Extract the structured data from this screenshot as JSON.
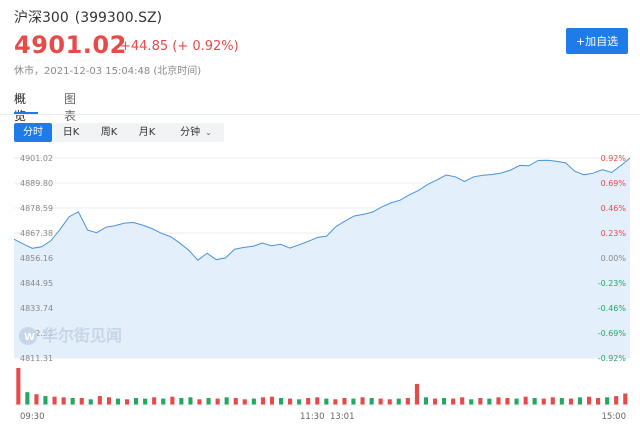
{
  "header": {
    "name": "沪深300",
    "code": "(399300.SZ)",
    "price": "4901.02",
    "change": "+44.85 (+ 0.92%)",
    "status": "休市，2021-12-03 15:04:48 (北京时间)",
    "add_button": "+加自选"
  },
  "tabs": [
    {
      "label": "概览",
      "active": true
    },
    {
      "label": "图表",
      "active": false
    }
  ],
  "periods": [
    {
      "label": "分时",
      "active": true
    },
    {
      "label": "日K",
      "active": false
    },
    {
      "label": "周K",
      "active": false
    },
    {
      "label": "月K",
      "active": false
    },
    {
      "label": "分钟",
      "active": false
    }
  ],
  "watermark": "华尔街见闻",
  "colors": {
    "accent": "#1f7be8",
    "up": "#e84a4a",
    "down": "#21a862",
    "area_fill": "#e3effb",
    "line": "#4a93d9"
  },
  "chart_data": {
    "type": "area",
    "title": "",
    "ylim": [
      4811.31,
      4901.02
    ],
    "y_ticks": [
      "4901.02",
      "4889.80",
      "4878.59",
      "4867.38",
      "4856.16",
      "4844.95",
      "4833.74",
      "4822.52",
      "4811.31"
    ],
    "pct_ticks": [
      "0.92%",
      "0.69%",
      "0.46%",
      "0.23%",
      "0.00%",
      "-0.23%",
      "-0.46%",
      "-0.69%",
      "-0.92%"
    ],
    "x_ticks": [
      "09:30",
      "11:30",
      "13:01",
      "15:00"
    ],
    "series": [
      {
        "values": [
          4864.6,
          4862.5,
          4860.5,
          4861.2,
          4863.9,
          4869.0,
          4874.7,
          4876.9,
          4868.7,
          4867.5,
          4870.0,
          4870.7,
          4871.8,
          4872.1,
          4870.9,
          4869.4,
          4867.3,
          4865.8,
          4863.0,
          4859.7,
          4855.2,
          4858.3,
          4855.4,
          4856.2,
          4860.1,
          4860.9,
          4861.4,
          4862.9,
          4861.7,
          4862.3,
          4860.6,
          4862.1,
          4863.6,
          4865.4,
          4866.0,
          4870.2,
          4872.7,
          4875.0,
          4875.7,
          4876.8,
          4879.1,
          4880.9,
          4882.1,
          4884.5,
          4886.5,
          4889.2,
          4891.2,
          4893.4,
          4892.6,
          4890.5,
          4892.6,
          4893.3,
          4893.6,
          4894.3,
          4895.6,
          4897.7,
          4897.5,
          4899.9,
          4900.0,
          4899.6,
          4898.8,
          4895.1,
          4893.5,
          4894.2,
          4895.8,
          4894.5,
          4897.6,
          4901.02
        ]
      }
    ],
    "volume": [
      58,
      20,
      17,
      14,
      13,
      12,
      11,
      11,
      9,
      14,
      12,
      10,
      9,
      11,
      10,
      12,
      10,
      13,
      11,
      12,
      9,
      11,
      10,
      12,
      11,
      9,
      10,
      12,
      13,
      11,
      10,
      9,
      11,
      12,
      10,
      9,
      11,
      10,
      12,
      11,
      10,
      9,
      10,
      11,
      33,
      12,
      10,
      11,
      10,
      12,
      9,
      11,
      10,
      12,
      11,
      10,
      13,
      11,
      10,
      12,
      11,
      10,
      12,
      13,
      11,
      12,
      14,
      18
    ],
    "volume_colors": [
      "up",
      "down",
      "up",
      "down",
      "up",
      "up",
      "down",
      "up",
      "down",
      "up",
      "up",
      "down",
      "up",
      "down",
      "down",
      "up",
      "down",
      "up",
      "down",
      "down",
      "up",
      "down",
      "up",
      "down",
      "up",
      "up",
      "down",
      "up",
      "up",
      "down",
      "up",
      "down",
      "up",
      "up",
      "down",
      "up",
      "up",
      "down",
      "up",
      "down",
      "up",
      "up",
      "down",
      "up",
      "up",
      "down",
      "up",
      "down",
      "up",
      "up",
      "down",
      "up",
      "down",
      "up",
      "up",
      "down",
      "up",
      "down",
      "up",
      "up",
      "down",
      "up",
      "down",
      "up",
      "up",
      "down",
      "up",
      "up"
    ],
    "grid": true
  }
}
